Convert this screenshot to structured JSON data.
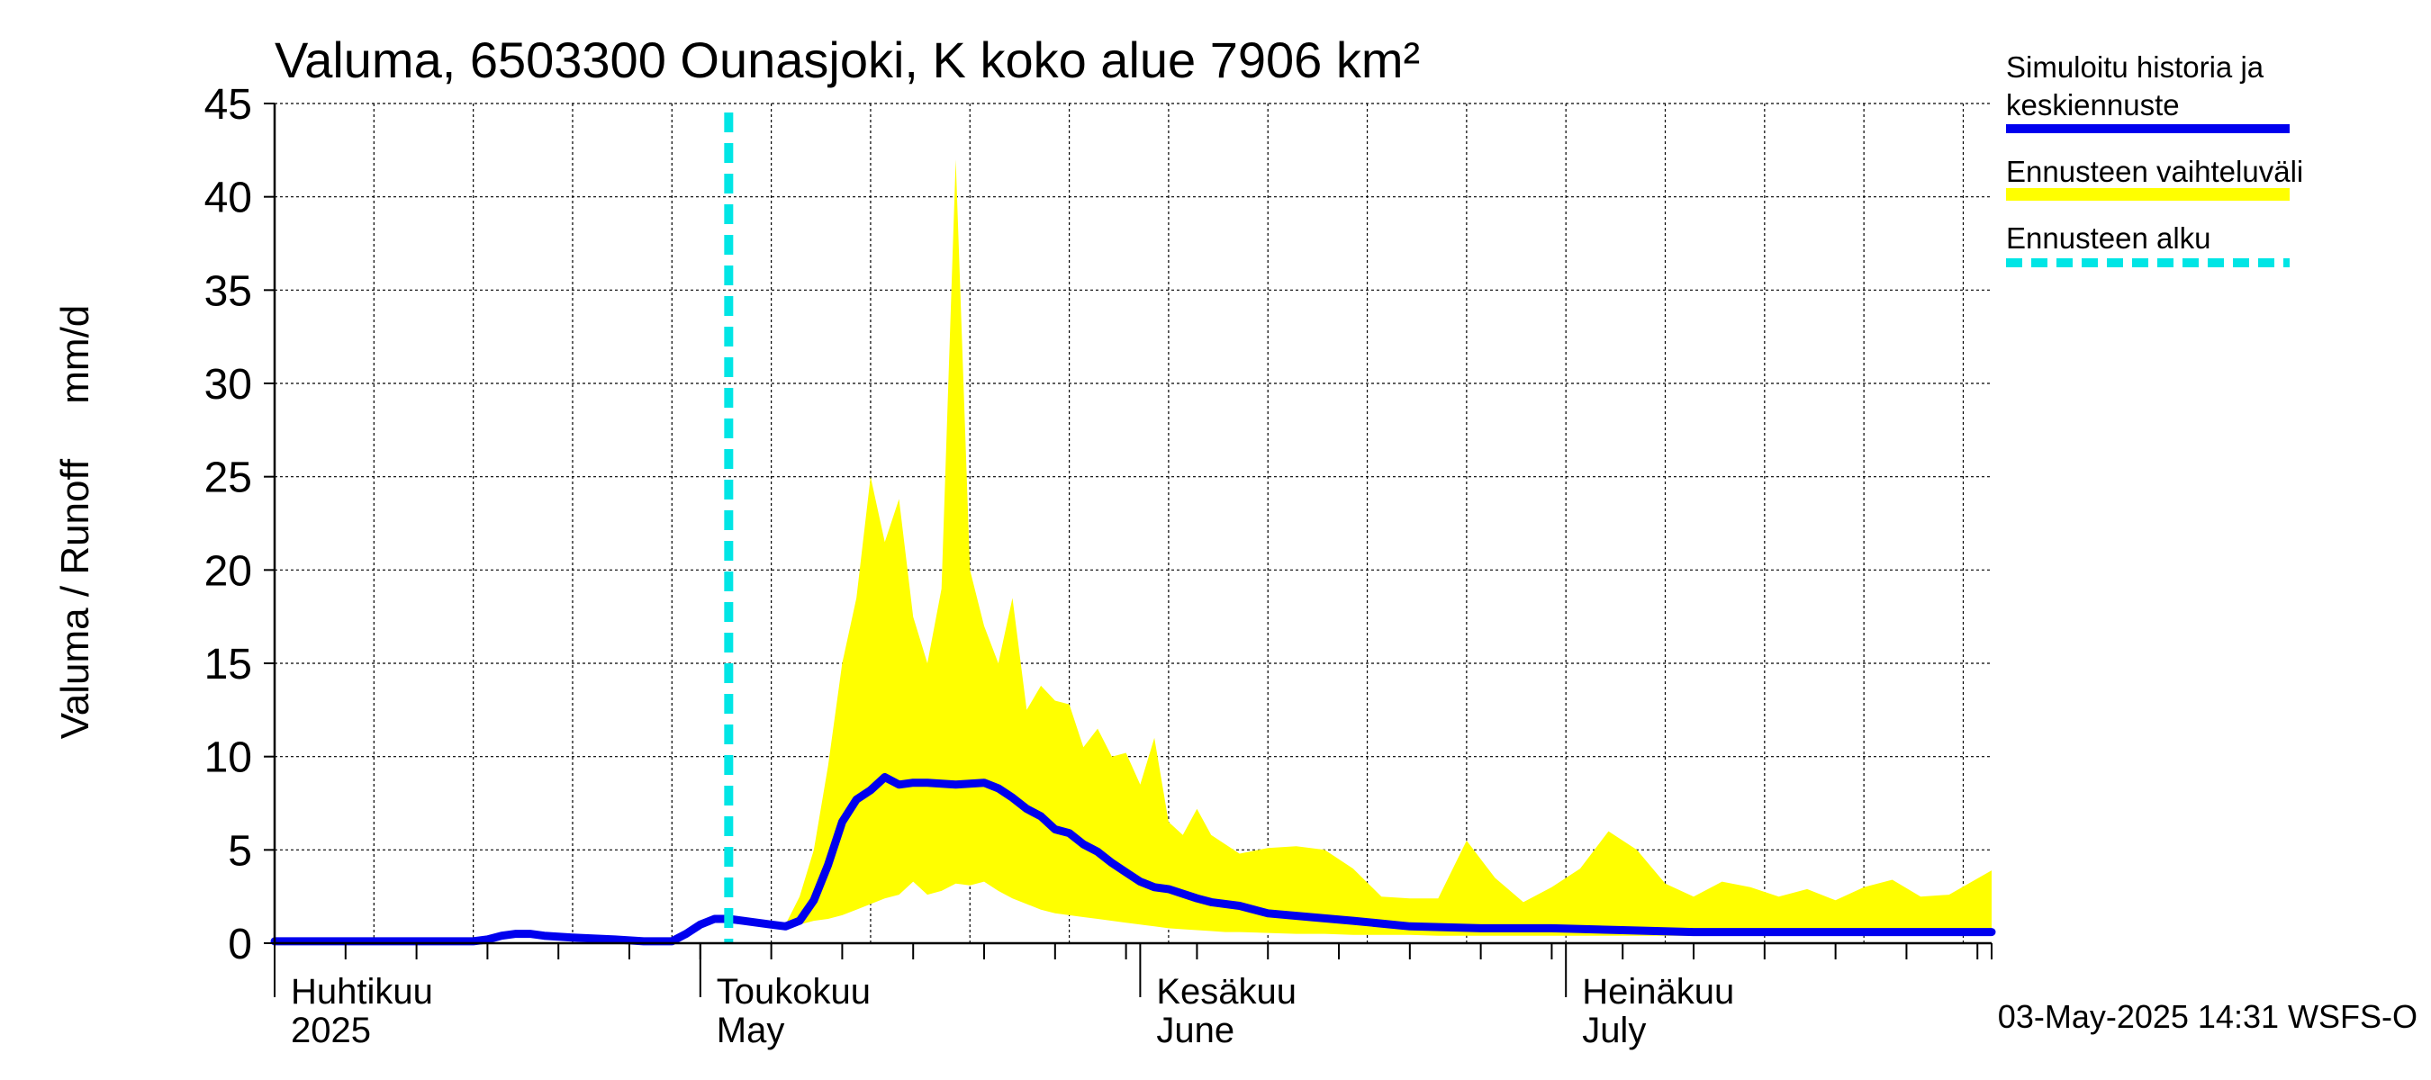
{
  "chart_data": {
    "type": "area",
    "title": "Valuma, 6503300 Ounasjoki, K koko alue 7906 km²",
    "ylabel": "Valuma / Runoff     mm/d",
    "ylim": [
      0,
      45
    ],
    "yticks": [
      0,
      5,
      10,
      15,
      20,
      25,
      30,
      35,
      40,
      45
    ],
    "xlim": [
      "2025-04-01",
      "2025-07-31"
    ],
    "grid": true,
    "legend_placement": "right",
    "month_labels": [
      {
        "fi": "Huhtikuu",
        "en": "2025",
        "date": "2025-04-01"
      },
      {
        "fi": "Toukokuu",
        "en": "May",
        "date": "2025-05-01"
      },
      {
        "fi": "Kesäkuu",
        "en": "June",
        "date": "2025-06-01"
      },
      {
        "fi": "Heinäkuu",
        "en": "July",
        "date": "2025-07-01"
      }
    ],
    "forecast_start": "2025-05-03",
    "timestamp": "03-May-2025 14:31 WSFS-O",
    "colors": {
      "simulated": "#0000ee",
      "range": "#ffff00",
      "forecast_start": "#00e5e5",
      "grid": "#000000"
    },
    "series": [
      {
        "name": "Simuloitu historia ja keskiennuste",
        "role": "line",
        "x": [
          "2025-04-01",
          "2025-04-08",
          "2025-04-15",
          "2025-04-16",
          "2025-04-17",
          "2025-04-18",
          "2025-04-19",
          "2025-04-20",
          "2025-04-22",
          "2025-04-25",
          "2025-04-27",
          "2025-04-29",
          "2025-04-30",
          "2025-05-01",
          "2025-05-02",
          "2025-05-03",
          "2025-05-04",
          "2025-05-06",
          "2025-05-07",
          "2025-05-08",
          "2025-05-09",
          "2025-05-10",
          "2025-05-11",
          "2025-05-12",
          "2025-05-13",
          "2025-05-14",
          "2025-05-15",
          "2025-05-16",
          "2025-05-17",
          "2025-05-19",
          "2025-05-21",
          "2025-05-22",
          "2025-05-23",
          "2025-05-24",
          "2025-05-25",
          "2025-05-26",
          "2025-05-27",
          "2025-05-28",
          "2025-05-29",
          "2025-05-30",
          "2025-05-31",
          "2025-06-01",
          "2025-06-02",
          "2025-06-03",
          "2025-06-05",
          "2025-06-06",
          "2025-06-08",
          "2025-06-10",
          "2025-06-13",
          "2025-06-16",
          "2025-06-20",
          "2025-06-25",
          "2025-06-30",
          "2025-07-05",
          "2025-07-10",
          "2025-07-15",
          "2025-07-20",
          "2025-07-25",
          "2025-07-31"
        ],
        "y": [
          0.1,
          0.1,
          0.1,
          0.2,
          0.4,
          0.5,
          0.5,
          0.4,
          0.3,
          0.2,
          0.1,
          0.1,
          0.5,
          1.0,
          1.3,
          1.3,
          1.2,
          1.0,
          0.9,
          1.2,
          2.3,
          4.2,
          6.5,
          7.7,
          8.2,
          8.9,
          8.5,
          8.6,
          8.6,
          8.5,
          8.6,
          8.3,
          7.8,
          7.2,
          6.8,
          6.1,
          5.9,
          5.3,
          4.9,
          4.3,
          3.8,
          3.3,
          3.0,
          2.9,
          2.4,
          2.2,
          2.0,
          1.6,
          1.4,
          1.2,
          0.9,
          0.8,
          0.8,
          0.7,
          0.6,
          0.6,
          0.6,
          0.6,
          0.6
        ]
      },
      {
        "name": "Ennusteen vaihteluväli",
        "role": "band",
        "x": [
          "2025-05-07",
          "2025-05-08",
          "2025-05-09",
          "2025-05-10",
          "2025-05-11",
          "2025-05-12",
          "2025-05-13",
          "2025-05-14",
          "2025-05-15",
          "2025-05-16",
          "2025-05-17",
          "2025-05-18",
          "2025-05-19",
          "2025-05-20",
          "2025-05-21",
          "2025-05-22",
          "2025-05-23",
          "2025-05-24",
          "2025-05-25",
          "2025-05-26",
          "2025-05-27",
          "2025-05-28",
          "2025-05-29",
          "2025-05-30",
          "2025-05-31",
          "2025-06-01",
          "2025-06-02",
          "2025-06-03",
          "2025-06-04",
          "2025-06-05",
          "2025-06-06",
          "2025-06-07",
          "2025-06-08",
          "2025-06-10",
          "2025-06-12",
          "2025-06-14",
          "2025-06-16",
          "2025-06-18",
          "2025-06-20",
          "2025-06-22",
          "2025-06-24",
          "2025-06-26",
          "2025-06-28",
          "2025-06-30",
          "2025-07-02",
          "2025-07-04",
          "2025-07-06",
          "2025-07-08",
          "2025-07-10",
          "2025-07-12",
          "2025-07-14",
          "2025-07-16",
          "2025-07-18",
          "2025-07-20",
          "2025-07-22",
          "2025-07-24",
          "2025-07-26",
          "2025-07-28",
          "2025-07-31"
        ],
        "upper": [
          1.0,
          2.5,
          5.0,
          9.5,
          15.0,
          18.5,
          25.0,
          21.5,
          23.8,
          17.5,
          15.0,
          19.0,
          42.0,
          20.0,
          17.0,
          15.0,
          18.5,
          12.5,
          13.8,
          13.0,
          12.8,
          10.5,
          11.5,
          10.0,
          10.2,
          8.5,
          11.0,
          6.5,
          5.8,
          7.2,
          5.8,
          5.3,
          4.8,
          5.1,
          5.2,
          5.0,
          4.0,
          2.5,
          2.4,
          2.4,
          5.5,
          3.5,
          2.2,
          3.0,
          4.0,
          6.0,
          5.0,
          3.2,
          2.5,
          3.3,
          3.0,
          2.5,
          2.9,
          2.3,
          3.0,
          3.4,
          2.5,
          2.6,
          3.9
        ],
        "lower": [
          0.9,
          1.0,
          1.2,
          1.3,
          1.5,
          1.8,
          2.1,
          2.4,
          2.6,
          3.3,
          2.6,
          2.8,
          3.2,
          3.1,
          3.3,
          2.8,
          2.4,
          2.1,
          1.8,
          1.6,
          1.5,
          1.4,
          1.3,
          1.2,
          1.1,
          1.0,
          0.9,
          0.8,
          0.75,
          0.7,
          0.65,
          0.6,
          0.6,
          0.55,
          0.5,
          0.5,
          0.45,
          0.45,
          0.45,
          0.4,
          0.4,
          0.4,
          0.4,
          0.4,
          0.4,
          0.4,
          0.4,
          0.4,
          0.4,
          0.4,
          0.4,
          0.4,
          0.4,
          0.4,
          0.4,
          0.4,
          0.4,
          0.4,
          0.4
        ]
      },
      {
        "name": "Ennusteen alku",
        "role": "vline"
      }
    ],
    "legend": [
      {
        "label_lines": [
          "Simuloitu historia ja",
          "keskiennuste"
        ],
        "style": "solid",
        "color": "#0000ee"
      },
      {
        "label_lines": [
          "Ennusteen vaihteluväli"
        ],
        "style": "solid",
        "color": "#ffff00"
      },
      {
        "label_lines": [
          "Ennusteen alku"
        ],
        "style": "dashed",
        "color": "#00e5e5"
      }
    ]
  }
}
